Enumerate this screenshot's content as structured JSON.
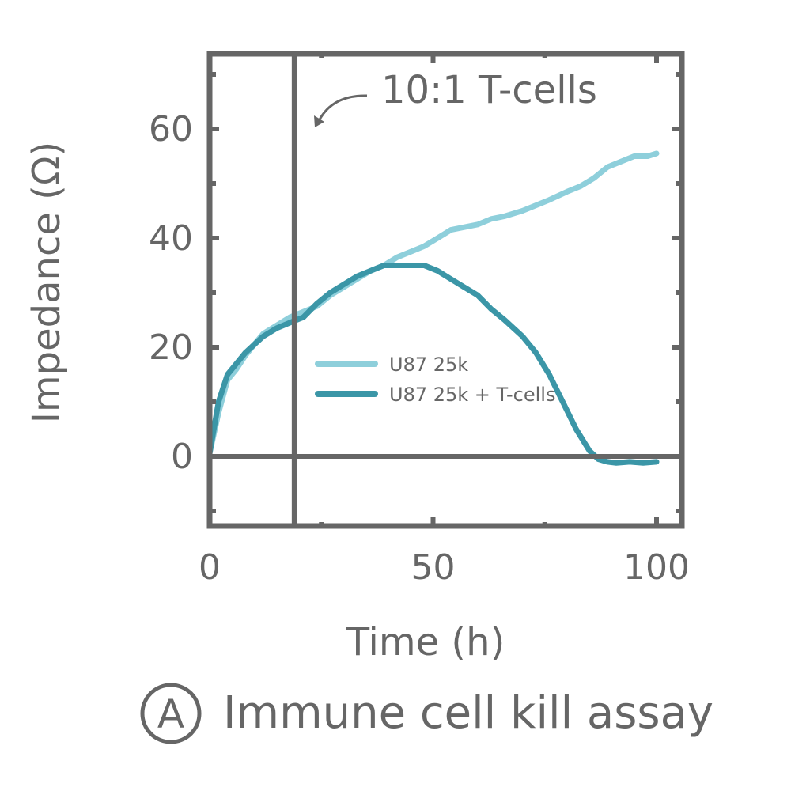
{
  "chart_data": {
    "type": "line",
    "xlabel": "Time (h)",
    "ylabel": "Impedance (Ω)",
    "xlim": [
      0,
      100
    ],
    "ylim": [
      -13,
      73
    ],
    "x_ticks": [
      0,
      50,
      100
    ],
    "y_ticks": [
      0,
      20,
      40,
      60
    ],
    "grid": false,
    "legend_position": "center-right",
    "annotation": {
      "text": "10:1 T-cells",
      "x": 19
    },
    "series": [
      {
        "name": "U87 25k",
        "color": "#8ecfdb",
        "x": [
          0,
          2,
          4,
          6,
          8,
          10,
          12,
          15,
          18,
          21,
          24,
          27,
          30,
          33,
          36,
          39,
          42,
          45,
          48,
          51,
          54,
          57,
          60,
          63,
          66,
          70,
          73,
          76,
          80,
          83,
          86,
          89,
          92,
          95,
          98,
          100
        ],
        "y": [
          0.5,
          8,
          14,
          16,
          18.5,
          20.5,
          22.5,
          24,
          25.5,
          26.5,
          27.5,
          29.5,
          31,
          32.5,
          34,
          35,
          36.5,
          37.5,
          38.5,
          40,
          41.5,
          42,
          42.5,
          43.5,
          44,
          45,
          46,
          47,
          48.5,
          49.5,
          51,
          53,
          54,
          55,
          55,
          55.5
        ]
      },
      {
        "name": "U87 25k + T-cells",
        "color": "#3b96a7",
        "x": [
          0,
          2,
          4,
          6,
          8,
          10,
          12,
          15,
          18,
          21,
          24,
          27,
          30,
          33,
          36,
          39,
          42,
          45,
          48,
          51,
          54,
          57,
          60,
          63,
          66,
          70,
          73,
          76,
          79,
          82,
          85,
          87,
          89,
          91,
          94,
          97,
          100
        ],
        "y": [
          0.5,
          10,
          15,
          17,
          19,
          20.5,
          22,
          23.5,
          24.5,
          25.5,
          28,
          30,
          31.5,
          33,
          34,
          35,
          35,
          35,
          35,
          34,
          32.5,
          31,
          29.5,
          27,
          25,
          22,
          19,
          15,
          10,
          5,
          1,
          -0.5,
          -1,
          -1.2,
          -1,
          -1.2,
          -1
        ]
      }
    ]
  },
  "caption": {
    "badge": "A",
    "text": "Immune cell kill assay"
  }
}
